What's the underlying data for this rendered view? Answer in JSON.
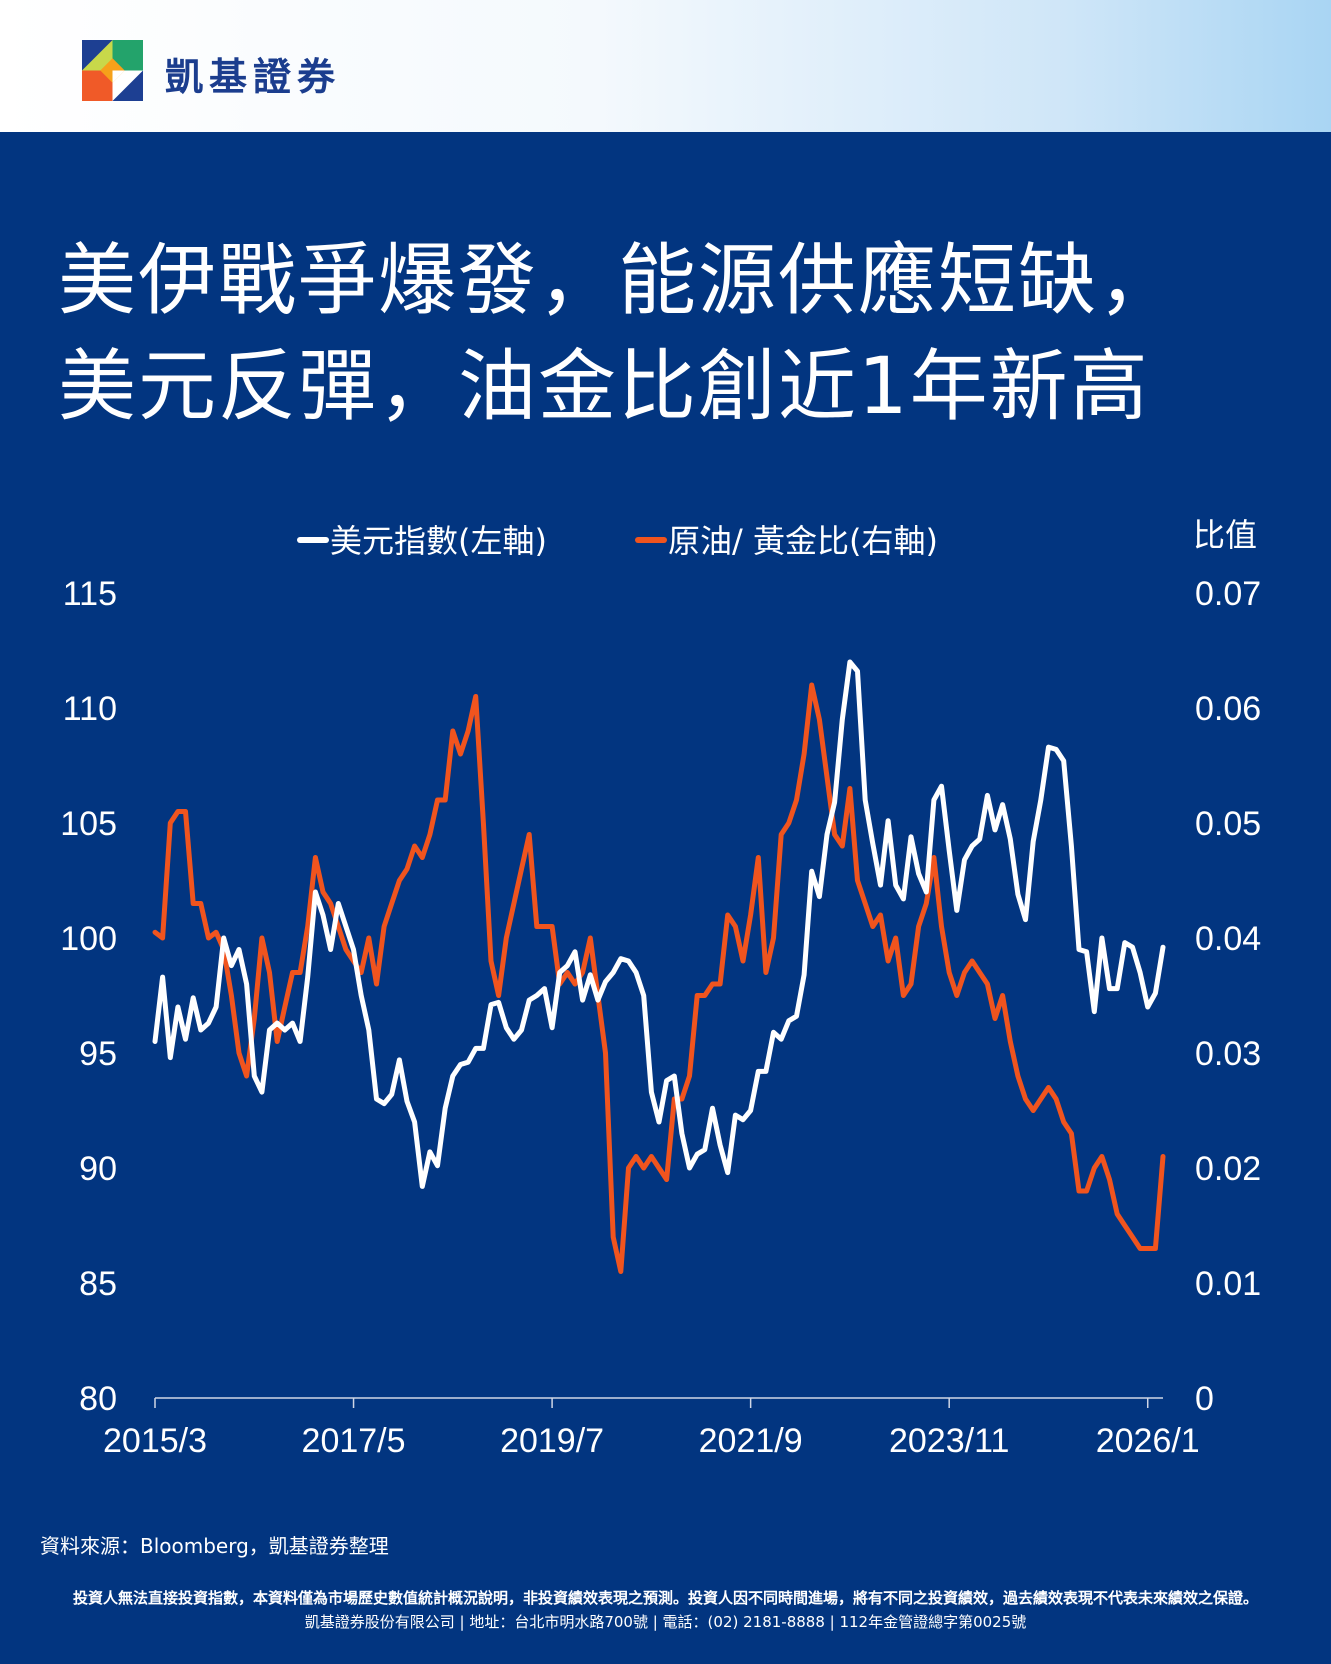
{
  "header": {
    "brand_name": "凱基證券",
    "logo_icon": "kgi-logo-icon"
  },
  "headline": {
    "line1": "美伊戰爭爆發，能源供應短缺，",
    "line2": "美元反彈，油金比創近1年新高"
  },
  "colors": {
    "background": "#023580",
    "usd_line": "#ffffff",
    "ratio_line": "#f0541e"
  },
  "chart_data": {
    "type": "line",
    "title": "美伊戰爭爆發，能源供應短缺，美元反彈，油金比創近1年新高",
    "right_axis_title": "比值",
    "legend_position": "top-center",
    "grid": false,
    "x_ticks": [
      "2015/3",
      "2017/5",
      "2019/7",
      "2021/9",
      "2023/11",
      "2026/1"
    ],
    "x_range": [
      "2015-03",
      "2026-03"
    ],
    "y_left": {
      "range": [
        80,
        115
      ],
      "ticks": [
        "80",
        "85",
        "90",
        "95",
        "100",
        "105",
        "110",
        "115"
      ]
    },
    "y_right": {
      "range": [
        0,
        0.07
      ],
      "ticks": [
        "0",
        "0.01",
        "0.02",
        "0.03",
        "0.04",
        "0.05",
        "0.06",
        "0.07"
      ]
    },
    "series": [
      {
        "name": "美元指數(左軸)",
        "axis": "left",
        "color": "#ffffff",
        "points": [
          [
            "2015-03",
            95.5
          ],
          [
            "2015-04",
            98.3
          ],
          [
            "2015-05",
            94.8
          ],
          [
            "2015-06",
            97.0
          ],
          [
            "2015-07",
            95.6
          ],
          [
            "2015-08",
            97.4
          ],
          [
            "2015-09",
            96.0
          ],
          [
            "2015-10",
            96.3
          ],
          [
            "2015-11",
            97.0
          ],
          [
            "2015-12",
            100.0
          ],
          [
            "2016-01",
            98.8
          ],
          [
            "2016-02",
            99.5
          ],
          [
            "2016-03",
            98.0
          ],
          [
            "2016-04",
            94.0
          ],
          [
            "2016-05",
            93.3
          ],
          [
            "2016-06",
            96.0
          ],
          [
            "2016-07",
            96.3
          ],
          [
            "2016-08",
            96.0
          ],
          [
            "2016-09",
            96.3
          ],
          [
            "2016-10",
            95.5
          ],
          [
            "2016-11",
            98.3
          ],
          [
            "2016-12",
            102.0
          ],
          [
            "2017-01",
            101.0
          ],
          [
            "2017-02",
            99.5
          ],
          [
            "2017-03",
            101.5
          ],
          [
            "2017-04",
            100.5
          ],
          [
            "2017-05",
            99.5
          ],
          [
            "2017-06",
            97.5
          ],
          [
            "2017-07",
            96.0
          ],
          [
            "2017-08",
            93.0
          ],
          [
            "2017-09",
            92.8
          ],
          [
            "2017-10",
            93.2
          ],
          [
            "2017-11",
            94.7
          ],
          [
            "2017-12",
            92.9
          ],
          [
            "2018-01",
            92.0
          ],
          [
            "2018-02",
            89.2
          ],
          [
            "2018-03",
            90.7
          ],
          [
            "2018-04",
            90.1
          ],
          [
            "2018-05",
            92.6
          ],
          [
            "2018-06",
            94.0
          ],
          [
            "2018-07",
            94.5
          ],
          [
            "2018-08",
            94.6
          ],
          [
            "2018-09",
            95.2
          ],
          [
            "2018-10",
            95.2
          ],
          [
            "2018-11",
            97.1
          ],
          [
            "2018-12",
            97.2
          ],
          [
            "2019-01",
            96.1
          ],
          [
            "2019-02",
            95.6
          ],
          [
            "2019-03",
            96.0
          ],
          [
            "2019-04",
            97.3
          ],
          [
            "2019-05",
            97.5
          ],
          [
            "2019-06",
            97.8
          ],
          [
            "2019-07",
            96.1
          ],
          [
            "2019-08",
            98.5
          ],
          [
            "2019-09",
            98.8
          ],
          [
            "2019-10",
            99.4
          ],
          [
            "2019-11",
            97.3
          ],
          [
            "2019-12",
            98.4
          ],
          [
            "2020-01",
            97.3
          ],
          [
            "2020-02",
            98.1
          ],
          [
            "2020-03",
            98.5
          ],
          [
            "2020-04",
            99.1
          ],
          [
            "2020-05",
            99.0
          ],
          [
            "2020-06",
            98.5
          ],
          [
            "2020-07",
            97.5
          ],
          [
            "2020-08",
            93.3
          ],
          [
            "2020-09",
            92.0
          ],
          [
            "2020-10",
            93.8
          ],
          [
            "2020-11",
            94.0
          ],
          [
            "2020-12",
            91.5
          ],
          [
            "2021-01",
            90.0
          ],
          [
            "2021-02",
            90.6
          ],
          [
            "2021-03",
            90.8
          ],
          [
            "2021-04",
            92.6
          ],
          [
            "2021-05",
            91.0
          ],
          [
            "2021-06",
            89.8
          ],
          [
            "2021-07",
            92.3
          ],
          [
            "2021-08",
            92.1
          ],
          [
            "2021-09",
            92.5
          ],
          [
            "2021-10",
            94.2
          ],
          [
            "2021-11",
            94.2
          ],
          [
            "2021-12",
            95.9
          ],
          [
            "2022-01",
            95.6
          ],
          [
            "2022-02",
            96.4
          ],
          [
            "2022-03",
            96.6
          ],
          [
            "2022-04",
            98.4
          ],
          [
            "2022-05",
            102.9
          ],
          [
            "2022-06",
            101.8
          ],
          [
            "2022-07",
            104.5
          ],
          [
            "2022-08",
            105.9
          ],
          [
            "2022-09",
            109.5
          ],
          [
            "2022-10",
            112.0
          ],
          [
            "2022-11",
            111.6
          ],
          [
            "2022-12",
            106.0
          ],
          [
            "2023-01",
            104.1
          ],
          [
            "2023-02",
            102.3
          ],
          [
            "2023-03",
            105.1
          ],
          [
            "2023-04",
            102.3
          ],
          [
            "2023-05",
            101.7
          ],
          [
            "2023-06",
            104.4
          ],
          [
            "2023-07",
            102.8
          ],
          [
            "2023-08",
            102.0
          ],
          [
            "2023-09",
            106.0
          ],
          [
            "2023-10",
            106.6
          ],
          [
            "2023-11",
            103.8
          ],
          [
            "2023-12",
            101.2
          ],
          [
            "2024-01",
            103.4
          ],
          [
            "2024-02",
            104.0
          ],
          [
            "2024-03",
            104.3
          ],
          [
            "2024-04",
            106.2
          ],
          [
            "2024-05",
            104.7
          ],
          [
            "2024-06",
            105.8
          ],
          [
            "2024-07",
            104.3
          ],
          [
            "2024-08",
            101.9
          ],
          [
            "2024-09",
            100.8
          ],
          [
            "2024-10",
            104.2
          ],
          [
            "2024-11",
            106.0
          ],
          [
            "2024-12",
            108.3
          ],
          [
            "2025-01",
            108.2
          ],
          [
            "2025-02",
            107.7
          ],
          [
            "2025-03",
            104.0
          ],
          [
            "2025-04",
            99.5
          ],
          [
            "2025-05",
            99.4
          ],
          [
            "2025-06",
            96.8
          ],
          [
            "2025-07",
            100.0
          ],
          [
            "2025-08",
            97.8
          ],
          [
            "2025-09",
            97.8
          ],
          [
            "2025-10",
            99.8
          ],
          [
            "2025-11",
            99.6
          ],
          [
            "2025-12",
            98.5
          ],
          [
            "2026-01",
            97.0
          ],
          [
            "2026-02",
            97.6
          ],
          [
            "2026-03",
            99.6
          ]
        ]
      },
      {
        "name": "原油/ 黃金比(右軸)",
        "axis": "right",
        "color": "#f0541e",
        "points": [
          [
            "2015-03",
            0.0405
          ],
          [
            "2015-04",
            0.04
          ],
          [
            "2015-05",
            0.05
          ],
          [
            "2015-06",
            0.051
          ],
          [
            "2015-07",
            0.051
          ],
          [
            "2015-08",
            0.043
          ],
          [
            "2015-09",
            0.043
          ],
          [
            "2015-10",
            0.04
          ],
          [
            "2015-11",
            0.0405
          ],
          [
            "2015-12",
            0.039
          ],
          [
            "2016-01",
            0.035
          ],
          [
            "2016-02",
            0.03
          ],
          [
            "2016-03",
            0.028
          ],
          [
            "2016-04",
            0.033
          ],
          [
            "2016-05",
            0.04
          ],
          [
            "2016-06",
            0.037
          ],
          [
            "2016-07",
            0.031
          ],
          [
            "2016-08",
            0.034
          ],
          [
            "2016-09",
            0.037
          ],
          [
            "2016-10",
            0.037
          ],
          [
            "2016-11",
            0.041
          ],
          [
            "2016-12",
            0.047
          ],
          [
            "2017-01",
            0.044
          ],
          [
            "2017-02",
            0.043
          ],
          [
            "2017-03",
            0.041
          ],
          [
            "2017-04",
            0.039
          ],
          [
            "2017-05",
            0.038
          ],
          [
            "2017-06",
            0.037
          ],
          [
            "2017-07",
            0.04
          ],
          [
            "2017-08",
            0.036
          ],
          [
            "2017-09",
            0.041
          ],
          [
            "2017-10",
            0.043
          ],
          [
            "2017-11",
            0.045
          ],
          [
            "2017-12",
            0.046
          ],
          [
            "2018-01",
            0.048
          ],
          [
            "2018-02",
            0.047
          ],
          [
            "2018-03",
            0.049
          ],
          [
            "2018-04",
            0.052
          ],
          [
            "2018-05",
            0.052
          ],
          [
            "2018-06",
            0.058
          ],
          [
            "2018-07",
            0.056
          ],
          [
            "2018-08",
            0.058
          ],
          [
            "2018-09",
            0.061
          ],
          [
            "2018-10",
            0.05
          ],
          [
            "2018-11",
            0.038
          ],
          [
            "2018-12",
            0.035
          ],
          [
            "2019-01",
            0.04
          ],
          [
            "2019-02",
            0.043
          ],
          [
            "2019-03",
            0.046
          ],
          [
            "2019-04",
            0.049
          ],
          [
            "2019-05",
            0.041
          ],
          [
            "2019-06",
            0.041
          ],
          [
            "2019-07",
            0.041
          ],
          [
            "2019-08",
            0.036
          ],
          [
            "2019-09",
            0.037
          ],
          [
            "2019-10",
            0.036
          ],
          [
            "2019-11",
            0.037
          ],
          [
            "2019-12",
            0.04
          ],
          [
            "2020-01",
            0.035
          ],
          [
            "2020-02",
            0.03
          ],
          [
            "2020-03",
            0.014
          ],
          [
            "2020-04",
            0.011
          ],
          [
            "2020-05",
            0.02
          ],
          [
            "2020-06",
            0.021
          ],
          [
            "2020-07",
            0.02
          ],
          [
            "2020-08",
            0.021
          ],
          [
            "2020-09",
            0.02
          ],
          [
            "2020-10",
            0.019
          ],
          [
            "2020-11",
            0.026
          ],
          [
            "2020-12",
            0.026
          ],
          [
            "2021-01",
            0.028
          ],
          [
            "2021-02",
            0.035
          ],
          [
            "2021-03",
            0.035
          ],
          [
            "2021-04",
            0.036
          ],
          [
            "2021-05",
            0.036
          ],
          [
            "2021-06",
            0.042
          ],
          [
            "2021-07",
            0.041
          ],
          [
            "2021-08",
            0.038
          ],
          [
            "2021-09",
            0.042
          ],
          [
            "2021-10",
            0.047
          ],
          [
            "2021-11",
            0.037
          ],
          [
            "2021-12",
            0.04
          ],
          [
            "2022-01",
            0.049
          ],
          [
            "2022-02",
            0.05
          ],
          [
            "2022-03",
            0.052
          ],
          [
            "2022-04",
            0.056
          ],
          [
            "2022-05",
            0.062
          ],
          [
            "2022-06",
            0.059
          ],
          [
            "2022-07",
            0.054
          ],
          [
            "2022-08",
            0.049
          ],
          [
            "2022-09",
            0.048
          ],
          [
            "2022-10",
            0.053
          ],
          [
            "2022-11",
            0.045
          ],
          [
            "2022-12",
            0.043
          ],
          [
            "2023-01",
            0.041
          ],
          [
            "2023-02",
            0.042
          ],
          [
            "2023-03",
            0.038
          ],
          [
            "2023-04",
            0.04
          ],
          [
            "2023-05",
            0.035
          ],
          [
            "2023-06",
            0.036
          ],
          [
            "2023-07",
            0.041
          ],
          [
            "2023-08",
            0.043
          ],
          [
            "2023-09",
            0.047
          ],
          [
            "2023-10",
            0.041
          ],
          [
            "2023-11",
            0.037
          ],
          [
            "2023-12",
            0.035
          ],
          [
            "2024-01",
            0.037
          ],
          [
            "2024-02",
            0.038
          ],
          [
            "2024-03",
            0.037
          ],
          [
            "2024-04",
            0.036
          ],
          [
            "2024-05",
            0.033
          ],
          [
            "2024-06",
            0.035
          ],
          [
            "2024-07",
            0.031
          ],
          [
            "2024-08",
            0.028
          ],
          [
            "2024-09",
            0.026
          ],
          [
            "2024-10",
            0.025
          ],
          [
            "2024-11",
            0.026
          ],
          [
            "2024-12",
            0.027
          ],
          [
            "2025-01",
            0.026
          ],
          [
            "2025-02",
            0.024
          ],
          [
            "2025-03",
            0.023
          ],
          [
            "2025-04",
            0.018
          ],
          [
            "2025-05",
            0.018
          ],
          [
            "2025-06",
            0.02
          ],
          [
            "2025-07",
            0.021
          ],
          [
            "2025-08",
            0.019
          ],
          [
            "2025-09",
            0.016
          ],
          [
            "2025-10",
            0.015
          ],
          [
            "2025-11",
            0.014
          ],
          [
            "2025-12",
            0.013
          ],
          [
            "2026-01",
            0.013
          ],
          [
            "2026-02",
            0.013
          ],
          [
            "2026-03",
            0.021
          ]
        ]
      }
    ]
  },
  "footer": {
    "source": "資料來源：Bloomberg，凱基證券整理",
    "disclaimer_line1": "投資人無法直接投資指數，本資料僅為市場歷史數值統計概況說明，非投資績效表現之預測。投資人因不同時間進場，將有不同之投資績效，過去績效表現不代表未來績效之保證。",
    "disclaimer_line2": "凱基證券股份有限公司 | 地址：台北市明水路700號 | 電話：(02) 2181-8888 | 112年金管證總字第0025號"
  }
}
